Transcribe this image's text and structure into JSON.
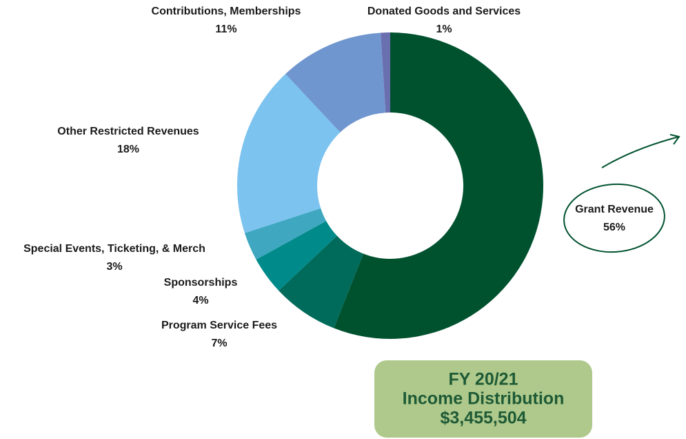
{
  "chart_data": {
    "type": "pie",
    "donut": true,
    "categories": [
      "Grant Revenue",
      "Program Service Fees",
      "Sponsorships",
      "Special Events, Ticketing, & Merch",
      "Other Restricted Revenues",
      "Contributions, Memberships",
      "Donated Goods and Services"
    ],
    "values": [
      56,
      7,
      4,
      3,
      18,
      11,
      1
    ],
    "value_labels": [
      "56%",
      "7%",
      "4%",
      "3%",
      "18%",
      "11%",
      "1%"
    ],
    "colors": [
      "#00522f",
      "#006b5a",
      "#008a8a",
      "#3fa8c0",
      "#7cc3ef",
      "#7096cf",
      "#6a6fb0"
    ],
    "title": "FY 20/21",
    "subtitle": "Income Distribution",
    "total_label": "$3,455,504"
  }
}
